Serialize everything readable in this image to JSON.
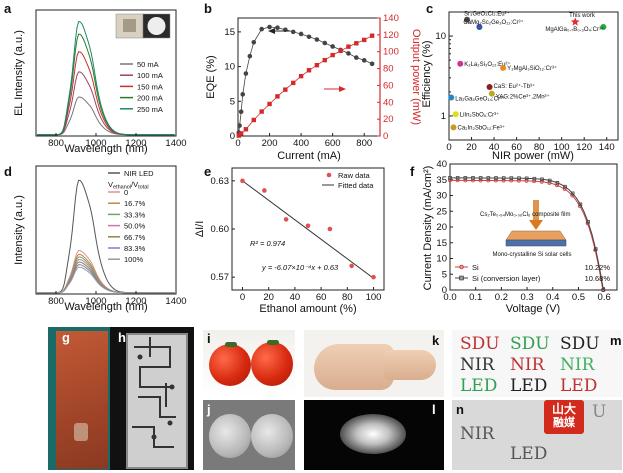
{
  "panels": {
    "a": "a",
    "b": "b",
    "c": "c",
    "d": "d",
    "e": "e",
    "f": "f",
    "g": "g",
    "h": "h",
    "i": "i",
    "j": "j",
    "k": "k",
    "l": "l",
    "m": "m",
    "n": "n"
  },
  "chart_data": [
    {
      "id": "a",
      "type": "line",
      "xlabel": "Wavelength (nm)",
      "ylabel": "EL Intensity (a.u.)",
      "xlim": [
        700,
        1400
      ],
      "xticks": [
        800,
        1000,
        1200,
        1400
      ],
      "legend": [
        {
          "name": "50 mA",
          "color": "#777777",
          "peak": 0.3
        },
        {
          "name": "100 mA",
          "color": "#a04060",
          "peak": 0.5
        },
        {
          "name": "150 mA",
          "color": "#c93030",
          "peak": 0.66
        },
        {
          "name": "200 mA",
          "color": "#2a7a2a",
          "peak": 0.8
        },
        {
          "name": "250 mA",
          "color": "#1a8a6a",
          "peak": 0.9
        }
      ],
      "legend_extra": "",
      "peak_nm": 915
    },
    {
      "id": "b",
      "type": "line",
      "xlabel": "Current (mA)",
      "ylabel": "EQE (%)",
      "y2label": "Output power (mW)",
      "xlim": [
        0,
        900
      ],
      "xticks": [
        0,
        200,
        400,
        600,
        800
      ],
      "ylim": [
        0,
        17
      ],
      "yticks": [
        0,
        5,
        10,
        15
      ],
      "y2lim": [
        0,
        140
      ],
      "y2ticks": [
        0,
        20,
        40,
        60,
        80,
        100,
        120,
        140
      ],
      "series": [
        {
          "name": "EQE",
          "axis": "left",
          "color": "#444444",
          "x": [
            5,
            10,
            20,
            30,
            50,
            75,
            100,
            150,
            200,
            250,
            300,
            350,
            400,
            450,
            500,
            550,
            600,
            650,
            700,
            750,
            800,
            850
          ],
          "y": [
            0.5,
            1.5,
            3.5,
            6,
            9,
            11.5,
            13.5,
            15.4,
            15.7,
            15.6,
            15.3,
            15.0,
            14.7,
            14.3,
            13.9,
            13.4,
            12.9,
            12.4,
            11.9,
            11.3,
            10.9,
            10.4
          ]
        },
        {
          "name": "Output power",
          "axis": "right",
          "color": "#d42a2a",
          "x": [
            5,
            20,
            50,
            100,
            150,
            200,
            250,
            300,
            350,
            400,
            450,
            500,
            550,
            600,
            650,
            700,
            750,
            800,
            850
          ],
          "y": [
            0.5,
            3,
            8,
            19,
            29,
            38,
            47,
            55,
            63,
            71,
            78,
            84,
            90,
            96,
            101,
            106,
            110,
            114,
            119
          ]
        }
      ]
    },
    {
      "id": "c",
      "type": "scatter",
      "xlabel": "NIR power (mW)",
      "ylabel": "Efficiency (%)",
      "xlim": [
        0,
        150
      ],
      "xticks": [
        0,
        20,
        40,
        60,
        80,
        100,
        120,
        140
      ],
      "ylog": true,
      "ylim": [
        0.5,
        20
      ],
      "yticks": [
        1,
        10
      ],
      "points": [
        {
          "label": "Sr₃GeO₃Cl₂:Eu²⁺",
          "x": 16,
          "y": 16,
          "color": "#444444"
        },
        {
          "label": "CaMg₂Sc₂Ge₃O₁₂:Cr³⁺",
          "x": 27,
          "y": 13,
          "color": "#3355aa"
        },
        {
          "label": "This work",
          "x": 112,
          "y": 15,
          "color": "#e03030"
        },
        {
          "label": "MgAlGa₀.₇B₀.₃O₄:Cr³⁺",
          "x": 137,
          "y": 13,
          "color": "#22aa44"
        },
        {
          "label": "K₂La₂Si₃O₁₂:Eu²⁺",
          "x": 10,
          "y": 4.5,
          "color": "#cc3399"
        },
        {
          "label": "Y₃MgAl₃SiO₁₂:Cr³⁺",
          "x": 48,
          "y": 4.0,
          "color": "#e88a22"
        },
        {
          "label": "CaS: Eu²⁺-Tb³⁺",
          "x": 36,
          "y": 2.3,
          "color": "#882222"
        },
        {
          "label": "YAG:2%Ce³⁺,2Mn²⁺",
          "x": 38,
          "y": 1.9,
          "color": "#bbaa22"
        },
        {
          "label": "La₃Ga₅GeO₁₄:Cr³⁺",
          "x": 2,
          "y": 1.7,
          "color": "#2288cc"
        },
        {
          "label": "LiIn₂SbO₆:Cr³⁺",
          "x": 6,
          "y": 1.05,
          "color": "#dddd22"
        },
        {
          "label": "Ca₂In₂SbO₁₂:Fe³⁺",
          "x": 4,
          "y": 0.72,
          "color": "#cc9922"
        }
      ]
    },
    {
      "id": "d",
      "type": "line",
      "xlabel": "Wavelength (nm)",
      "ylabel": "Intensity (a.u.)",
      "xlim": [
        700,
        1400
      ],
      "xticks": [
        800,
        1000,
        1200,
        1400
      ],
      "legend_title": "V",
      "legend_title_sub1": "ethanol",
      "legend_title_sep": "/V",
      "legend_title_sub2": "total",
      "legend": [
        {
          "name": "NIR LED",
          "color": "#555555",
          "peak": 0.88
        },
        {
          "name": "0",
          "color": "#e09090",
          "peak": 0.33
        },
        {
          "name": "16.7%",
          "color": "#b88c4a",
          "peak": 0.3
        },
        {
          "name": "33.3%",
          "color": "#66aa66",
          "peak": 0.28
        },
        {
          "name": "50.0%",
          "color": "#c77aa0",
          "peak": 0.26
        },
        {
          "name": "66.7%",
          "color": "#8a8a40",
          "peak": 0.24
        },
        {
          "name": "83.3%",
          "color": "#7f7fcf",
          "peak": 0.22
        },
        {
          "name": "100%",
          "color": "#999999",
          "peak": 0.2
        }
      ],
      "peak_nm": 915
    },
    {
      "id": "e",
      "type": "scatter",
      "xlabel": "Ethanol amount (%)",
      "ylabel": "ΔI/I",
      "xlim": [
        -8,
        108
      ],
      "xticks": [
        0,
        20,
        40,
        60,
        80,
        100
      ],
      "ylim": [
        0.562,
        0.638
      ],
      "yticks": [
        0.57,
        0.6,
        0.63
      ],
      "legend": [
        {
          "name": "Raw data",
          "color": "#e05050"
        },
        {
          "name": "Fitted data",
          "color": "#333333"
        }
      ],
      "x": [
        0,
        16.7,
        33.3,
        50,
        66.7,
        83.3,
        100
      ],
      "y": [
        0.63,
        0.624,
        0.606,
        0.602,
        0.6,
        0.577,
        0.57
      ],
      "fit": {
        "slope": -0.000607,
        "intercept": 0.63
      },
      "annot_r2": "R² = 0.974",
      "annot_eq": "y = -6.07×10⁻⁴x + 0.63"
    },
    {
      "id": "f",
      "type": "line",
      "xlabel": "Voltage (V)",
      "ylabel": "Current Density (mA/cm²)",
      "xlim": [
        0,
        0.65
      ],
      "xticks": [
        0,
        0.1,
        0.2,
        0.3,
        0.4,
        0.5,
        0.6
      ],
      "ylim": [
        0,
        40
      ],
      "yticks": [
        0,
        5,
        10,
        15,
        20,
        25,
        30,
        35,
        40
      ],
      "series": [
        {
          "name": "Si",
          "color": "#d04040",
          "jsc": 34.8,
          "voc": 0.595,
          "eff": "10.22%"
        },
        {
          "name": "Si (conversion layer)",
          "color": "#444444",
          "jsc": 35.6,
          "voc": 0.597,
          "eff": "10.68%"
        }
      ],
      "inset_film": "Cs₂Te₀.₉₄Mo₀.₀₆Cl₆ composite film",
      "inset_cell": "Mono-crystalline Si solar cells"
    }
  ],
  "photos": {
    "m_rows": [
      [
        {
          "t": "SDU",
          "c": "#c03030"
        },
        {
          "t": "SDU",
          "c": "#30a050"
        },
        {
          "t": "SDU",
          "c": "#222222"
        }
      ],
      [
        {
          "t": "NIR",
          "c": "#333333"
        },
        {
          "t": "NIR",
          "c": "#c03030"
        },
        {
          "t": "NIR",
          "c": "#40b060"
        }
      ],
      [
        {
          "t": "LED",
          "c": "#30a050"
        },
        {
          "t": "LED",
          "c": "#222222"
        },
        {
          "t": "LED",
          "c": "#c03030"
        }
      ]
    ],
    "n_text1": "NIR",
    "n_text2": "LED",
    "n_text3": "U",
    "logo_a": "山",
    "logo_b": "大",
    "logo_c": "融媒"
  }
}
